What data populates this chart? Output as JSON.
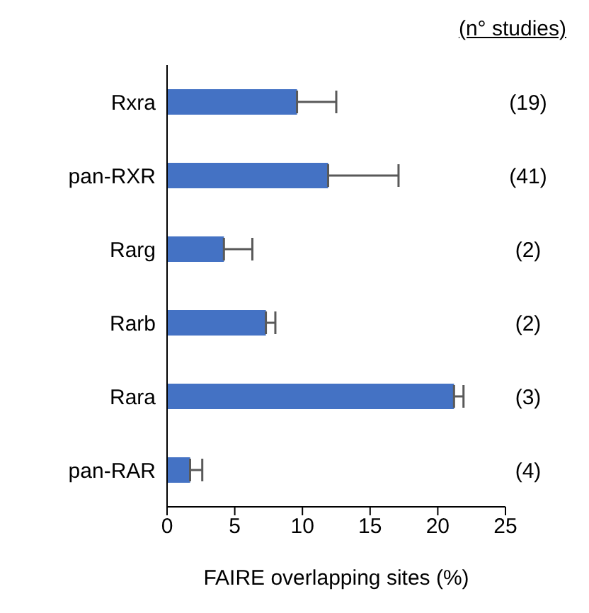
{
  "chart_data": {
    "type": "bar",
    "orientation": "horizontal",
    "xlabel": "FAIRE overlapping sites (%)",
    "categories": [
      "Rxra",
      "pan-RXR",
      "Rarg",
      "Rarb",
      "Rara",
      "pan-RAR"
    ],
    "values": [
      9.6,
      11.9,
      4.2,
      7.3,
      21.2,
      1.7
    ],
    "errors": [
      [
        9.6,
        12.5
      ],
      [
        11.9,
        17.1
      ],
      [
        4.2,
        6.3
      ],
      [
        7.3,
        8.0
      ],
      [
        21.2,
        21.9
      ],
      [
        1.7,
        2.6
      ]
    ],
    "color": "#4472c4",
    "xlim": [
      0,
      25
    ],
    "xticks": [
      0,
      5,
      10,
      15,
      20,
      25
    ],
    "grid": false,
    "legend": false,
    "annotations": [
      "(n° studies)",
      "(19)",
      "(41)",
      "(2)",
      "(2)",
      "(3)",
      "(4)"
    ]
  }
}
